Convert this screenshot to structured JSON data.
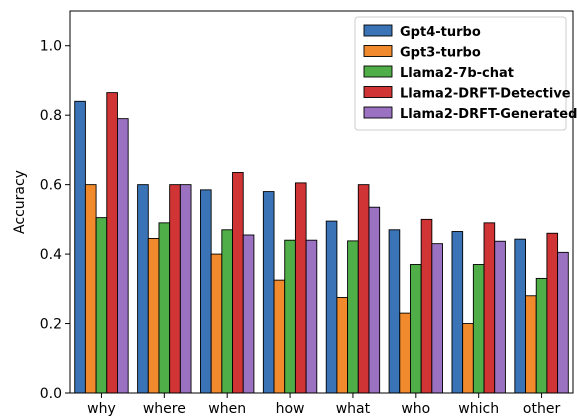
{
  "chart_data": {
    "type": "bar",
    "title": "",
    "xlabel": "",
    "ylabel": "Accuracy",
    "ylim": [
      0.0,
      1.1
    ],
    "yticks": [
      "0.0",
      "0.2",
      "0.4",
      "0.6",
      "0.8",
      "1.0"
    ],
    "ytick_values": [
      0.0,
      0.2,
      0.4,
      0.6,
      0.8,
      1.0
    ],
    "categories": [
      "why",
      "where",
      "when",
      "how",
      "what",
      "who",
      "which",
      "other"
    ],
    "grid": false,
    "legend_position": "top-right",
    "series": [
      {
        "name": "Gpt4-turbo",
        "color": "#3a73b6",
        "values": [
          0.84,
          0.6,
          0.585,
          0.58,
          0.495,
          0.47,
          0.465,
          0.443
        ]
      },
      {
        "name": "Gpt3-turbo",
        "color": "#f08a2c",
        "values": [
          0.6,
          0.445,
          0.4,
          0.325,
          0.275,
          0.23,
          0.2,
          0.28
        ]
      },
      {
        "name": "Llama2-7b-chat",
        "color": "#4fae47",
        "values": [
          0.505,
          0.49,
          0.47,
          0.44,
          0.438,
          0.37,
          0.37,
          0.33
        ]
      },
      {
        "name": "Llama2-DRFT-Detective",
        "color": "#d13434",
        "values": [
          0.865,
          0.6,
          0.635,
          0.605,
          0.6,
          0.5,
          0.49,
          0.46
        ]
      },
      {
        "name": "Llama2-DRFT-Generated",
        "color": "#9b72c2",
        "values": [
          0.79,
          0.6,
          0.455,
          0.44,
          0.535,
          0.43,
          0.437,
          0.405
        ]
      }
    ]
  }
}
